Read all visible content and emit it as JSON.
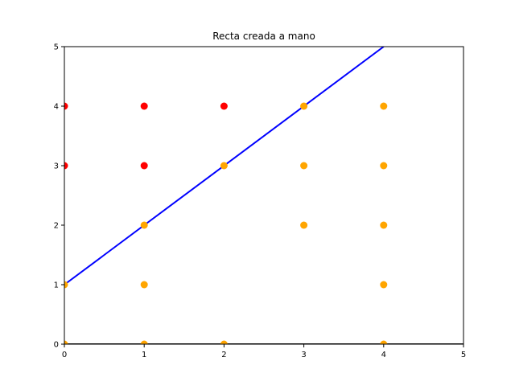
{
  "chart_data": {
    "type": "scatter",
    "title": "Recta creada a mano",
    "xlabel": "",
    "ylabel": "",
    "xlim": [
      0,
      5
    ],
    "ylim": [
      0,
      5
    ],
    "x_ticks": [
      "0",
      "1",
      "2",
      "3",
      "4",
      "5"
    ],
    "y_ticks": [
      "0",
      "1",
      "2",
      "3",
      "4",
      "5"
    ],
    "grid": false,
    "legend": "none",
    "colors": {
      "red_points": "#ff0000",
      "orange_points": "#ffa500",
      "line": "#0000ff",
      "baseline": "#000000"
    },
    "series": [
      {
        "color": "#ff0000",
        "points": [
          [
            0,
            4
          ],
          [
            0,
            3
          ],
          [
            1,
            4
          ],
          [
            1,
            3
          ],
          [
            2,
            4
          ]
        ]
      },
      {
        "color": "#ffa500",
        "points": [
          [
            0,
            0
          ],
          [
            0,
            1
          ],
          [
            1,
            0
          ],
          [
            1,
            1
          ],
          [
            1,
            2
          ],
          [
            2,
            0
          ],
          [
            2,
            3
          ],
          [
            3,
            2
          ],
          [
            3,
            3
          ],
          [
            3,
            4
          ],
          [
            4,
            0
          ],
          [
            4,
            1
          ],
          [
            4,
            2
          ],
          [
            4,
            3
          ],
          [
            4,
            4
          ]
        ]
      }
    ],
    "lines": [
      {
        "color": "#0000ff",
        "x": [
          0,
          4
        ],
        "y": [
          1,
          5
        ]
      },
      {
        "color": "#000000",
        "x": [
          0,
          5
        ],
        "y": [
          0,
          0
        ]
      }
    ]
  }
}
